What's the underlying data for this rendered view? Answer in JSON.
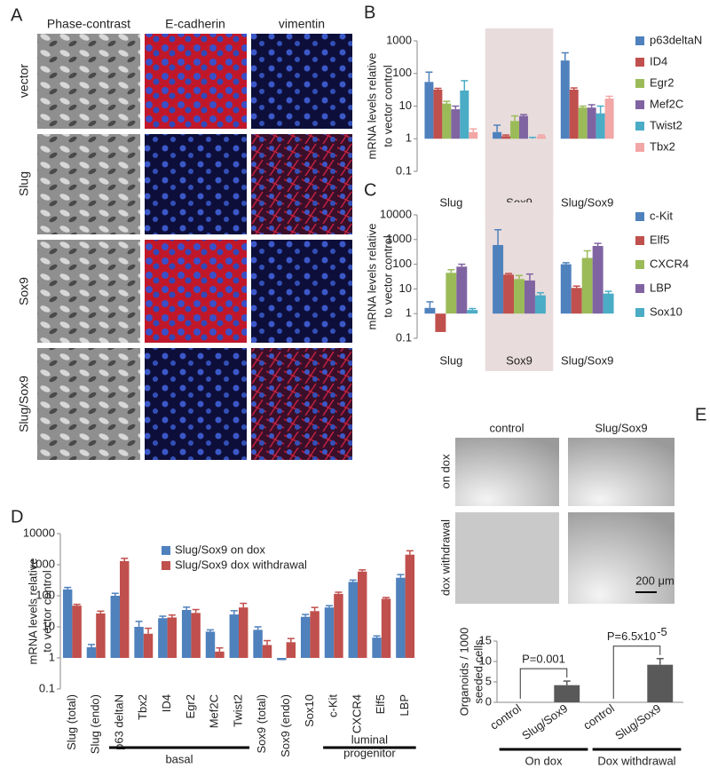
{
  "panels": {
    "A": {
      "label": "A",
      "columns": [
        "Phase-contrast",
        "E-cadherin",
        "vimentin"
      ],
      "rows": [
        "vector",
        "Slug",
        "Sox9",
        "Slug/Sox9"
      ]
    },
    "E": {
      "label": "E",
      "columns": [
        "control",
        "Slug/Sox9"
      ],
      "rows": [
        "on dox",
        "dox withdrawal"
      ],
      "scale_bar": "200 μm"
    }
  },
  "chart_data": [
    {
      "panel": "B",
      "type": "bar",
      "ylabel": [
        "mRNA levels relative",
        "to vector control"
      ],
      "categories": [
        "Slug",
        "Sox9",
        "Slug/Sox9"
      ],
      "highlight": 1,
      "log_scale": true,
      "axis_crosses": 1,
      "ylim": [
        0.1,
        1000
      ],
      "yticks": [
        0.1,
        1,
        10,
        100,
        1000
      ],
      "legend": "right",
      "series": [
        {
          "name": "p63deltaN",
          "color": "#4f81bd",
          "values": [
            55,
            1.6,
            250
          ],
          "errors": [
            55,
            1,
            180
          ]
        },
        {
          "name": "ID4",
          "color": "#c0504d",
          "values": [
            32,
            1.2,
            32
          ],
          "errors": [
            3,
            0.1,
            4
          ]
        },
        {
          "name": "Egr2",
          "color": "#9bbb59",
          "values": [
            12,
            3.5,
            9
          ],
          "errors": [
            2,
            1.5,
            1
          ]
        },
        {
          "name": "Mef2C",
          "color": "#8064a2",
          "values": [
            8,
            5,
            9
          ],
          "errors": [
            2,
            0.5,
            2
          ]
        },
        {
          "name": "Twist2",
          "color": "#4bacc6",
          "values": [
            30,
            1,
            6
          ],
          "errors": [
            30,
            0.1,
            4
          ]
        },
        {
          "name": "Tbx2",
          "color": "#f2a6a5",
          "values": [
            1.6,
            1.2,
            17
          ],
          "errors": [
            0.4,
            0.1,
            3
          ]
        }
      ]
    },
    {
      "panel": "C",
      "type": "bar",
      "ylabel": [
        "mRNA levels relative",
        "to vector control"
      ],
      "categories": [
        "Slug",
        "Sox9",
        "Slug/Sox9"
      ],
      "highlight": 1,
      "log_scale": true,
      "axis_crosses": 1,
      "ylim": [
        0.1,
        10000
      ],
      "yticks": [
        0.1,
        1,
        10,
        100,
        1000,
        10000
      ],
      "legend": "right",
      "series": [
        {
          "name": "c-Kit",
          "color": "#4f81bd",
          "values": [
            1.7,
            600,
            100
          ],
          "errors": [
            1.3,
            1900,
            15
          ]
        },
        {
          "name": "Elf5",
          "color": "#c0504d",
          "values": [
            0.18,
            38,
            11
          ],
          "errors": [
            0.05,
            4,
            2
          ]
        },
        {
          "name": "CXCR4",
          "color": "#9bbb59",
          "values": [
            45,
            25,
            180
          ],
          "errors": [
            15,
            10,
            170
          ]
        },
        {
          "name": "LBP",
          "color": "#8064a2",
          "values": [
            80,
            22,
            550
          ],
          "errors": [
            20,
            18,
            150
          ]
        },
        {
          "name": "Sox10",
          "color": "#4bacc6",
          "values": [
            1.4,
            5.5,
            6.5
          ],
          "errors": [
            0.2,
            1.5,
            1.5
          ]
        }
      ]
    },
    {
      "panel": "D",
      "type": "bar",
      "ylabel": [
        "mRNA levels relative",
        "to vector control"
      ],
      "categories": [
        "Slug (total)",
        "Slug (endo)",
        "p63 deltaN",
        "Tbx2",
        "ID4",
        "Egr2",
        "Mef2C",
        "Twist2",
        "Sox9 (total)",
        "Sox9 (endo)",
        "Sox10",
        "c-Kit",
        "CXCR4",
        "Elf5",
        "LBP"
      ],
      "log_scale": true,
      "axis_crosses": 1,
      "ylim": [
        0.1,
        10000
      ],
      "yticks": [
        0.1,
        1,
        10,
        100,
        1000,
        10000
      ],
      "legend": "upper left",
      "groups": [
        {
          "label": [
            "basal"
          ],
          "from": 2,
          "to": 7
        },
        {
          "label": [
            "luminal",
            "progenitor"
          ],
          "from": 11,
          "to": 14
        }
      ],
      "series": [
        {
          "name": "Slug/Sox9 on dox",
          "color": "#4f81bd",
          "values": [
            160,
            2.2,
            100,
            10,
            19,
            35,
            7,
            25,
            8,
            0.85,
            21,
            42,
            280,
            4.5,
            380
          ],
          "errors": [
            25,
            0.5,
            20,
            5,
            3,
            8,
            1,
            8,
            2,
            0.05,
            4,
            6,
            40,
            0.6,
            100
          ]
        },
        {
          "name": "Slug/Sox9 dox withdrawal",
          "color": "#c0504d",
          "values": [
            48,
            27,
            1300,
            6,
            20,
            28,
            1.6,
            42,
            2.6,
            3.2,
            32,
            115,
            600,
            80,
            2100
          ],
          "errors": [
            5,
            5,
            300,
            3,
            4,
            8,
            0.5,
            15,
            1,
            1,
            10,
            15,
            80,
            8,
            700
          ]
        }
      ]
    },
    {
      "panel": "E",
      "type": "bar",
      "ylabel": [
        "Organoids / 1000",
        "seeded cells"
      ],
      "categories": [
        "control",
        "Slug/Sox9",
        "control",
        "Slug/Sox9"
      ],
      "ylim": [
        0,
        15
      ],
      "yticks": [
        0,
        5,
        10,
        15
      ],
      "groups": [
        {
          "label": [
            "On dox"
          ],
          "from": 0,
          "to": 1
        },
        {
          "label": [
            "Dox withdrawal"
          ],
          "from": 2,
          "to": 3
        }
      ],
      "annotations": [
        {
          "text": "P=0.001",
          "from": 0,
          "to": 1
        },
        {
          "text": "P=6.5x10",
          "superscript": "-5",
          "from": 2,
          "to": 3
        }
      ],
      "series": [
        {
          "color": "#595959",
          "values": [
            0,
            4.2,
            0,
            9.2
          ],
          "errors": [
            null,
            1,
            null,
            1.5
          ]
        }
      ]
    }
  ]
}
